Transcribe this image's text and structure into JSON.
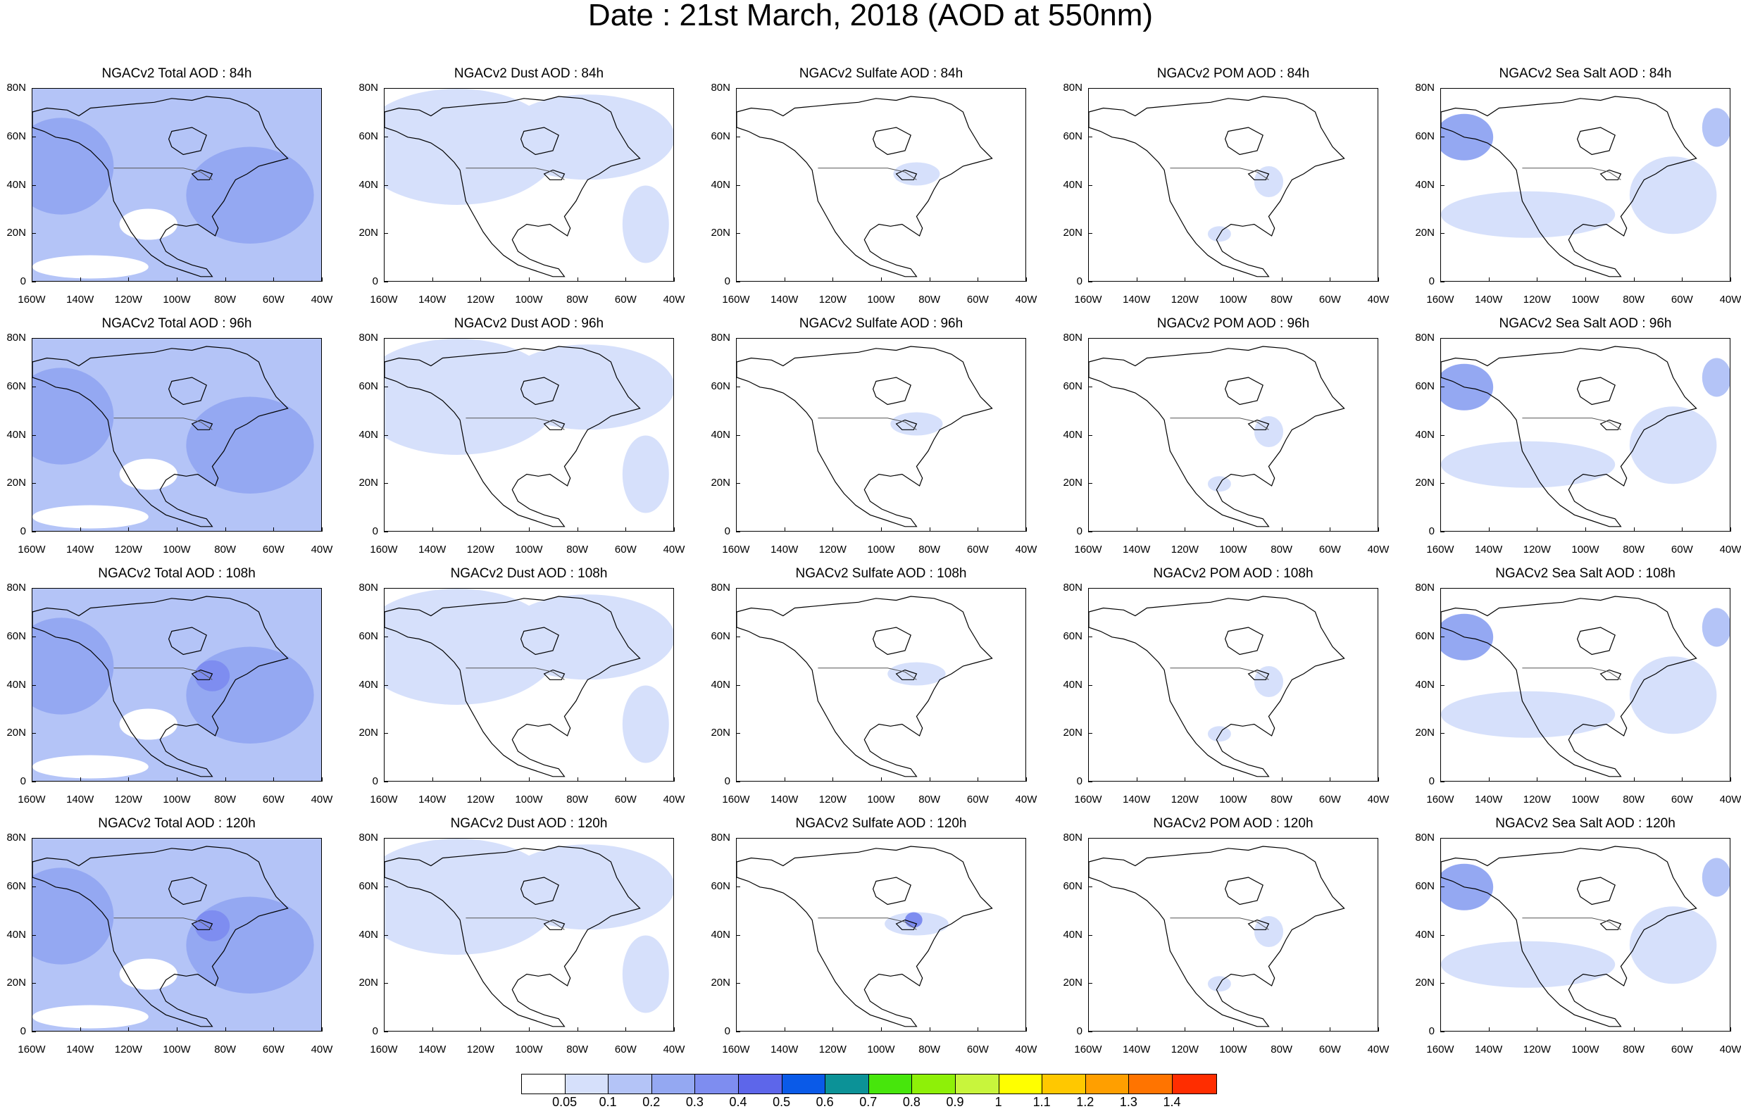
{
  "title": "Date : 21st March, 2018 (AOD at 550nm)",
  "species_columns": [
    {
      "key": "total",
      "prefix": "NGACv2 Total AOD"
    },
    {
      "key": "dust",
      "prefix": "NGACv2 Dust AOD"
    },
    {
      "key": "sulfate",
      "prefix": "NGACv2 Sulfate AOD"
    },
    {
      "key": "pom",
      "prefix": "NGACv2 POM AOD"
    },
    {
      "key": "seasalt",
      "prefix": "NGACv2 Sea Salt AOD"
    }
  ],
  "panels": [
    [
      "NGACv2 Total AOD : 84h",
      "NGACv2 Dust AOD : 84h",
      "NGACv2 Sulfate AOD : 84h",
      "NGACv2 POM AOD : 84h",
      "NGACv2 Sea Salt AOD : 84h"
    ],
    [
      "NGACv2 Total AOD : 96h",
      "NGACv2 Dust AOD : 96h",
      "NGACv2 Sulfate AOD : 96h",
      "NGACv2 POM AOD : 96h",
      "NGACv2 Sea Salt AOD : 96h"
    ],
    [
      "NGACv2 Total AOD : 108h",
      "NGACv2 Dust AOD : 108h",
      "NGACv2 Sulfate AOD : 108h",
      "NGACv2 POM AOD : 108h",
      "NGACv2 Sea Salt AOD : 108h"
    ],
    [
      "NGACv2 Total AOD : 120h",
      "NGACv2 Dust AOD : 120h",
      "NGACv2 Sulfate AOD : 120h",
      "NGACv2 POM AOD : 120h",
      "NGACv2 Sea Salt  AOD : 120h"
    ]
  ],
  "lat_labels": [
    "80N",
    "60N",
    "40N",
    "20N",
    "0"
  ],
  "lon_labels": [
    "160W",
    "140W",
    "120W",
    "100W",
    "80W",
    "60W",
    "40W"
  ],
  "colorbar": {
    "colors": [
      "#ffffff",
      "#d6e0fb",
      "#b4c4f7",
      "#94a8f2",
      "#7e8df0",
      "#5d66ea",
      "#0a5ae8",
      "#0c9297",
      "#47e60c",
      "#8ef008",
      "#c8f53c",
      "#ffff00",
      "#ffc800",
      "#ff9f00",
      "#ff7400",
      "#ff2d00"
    ],
    "labels": [
      "0.05",
      "0.1",
      "0.2",
      "0.3",
      "0.4",
      "0.5",
      "0.6",
      "0.7",
      "0.8",
      "0.9",
      "1",
      "1.1",
      "1.2",
      "1.3",
      "1.4"
    ]
  },
  "colors": {
    "aod_light": "#d6e0fb",
    "aod_medium": "#b4c4f7",
    "aod_strong": "#94a8f2",
    "aod_heavy": "#7e8df0",
    "coastline": "#000000"
  }
}
